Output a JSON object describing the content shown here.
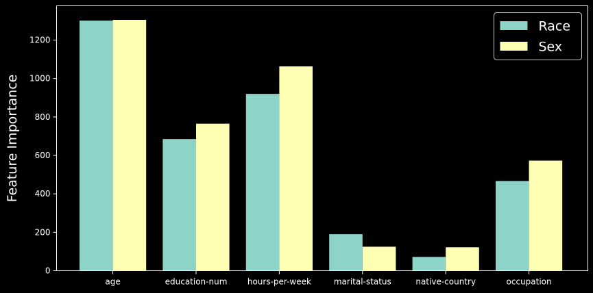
{
  "chart_data": {
    "type": "bar",
    "title": "",
    "xlabel": "",
    "ylabel": "Feature Importance",
    "categories": [
      "age",
      "education-num",
      "hours-per-week",
      "marital-status",
      "native-country",
      "occupation"
    ],
    "series": [
      {
        "name": "Race",
        "color": "#8dd3c7",
        "values": [
          1301,
          685,
          920,
          190,
          72,
          467
        ]
      },
      {
        "name": "Sex",
        "color": "#ffffb3",
        "values": [
          1305,
          765,
          1063,
          125,
          122,
          573
        ]
      }
    ],
    "ylim": [
      0,
      1378
    ],
    "yticks": [
      0,
      200,
      400,
      600,
      800,
      1000,
      1200
    ],
    "grid": false,
    "legend_position": "top-right",
    "background": "#000000",
    "foreground": "#ffffff"
  }
}
